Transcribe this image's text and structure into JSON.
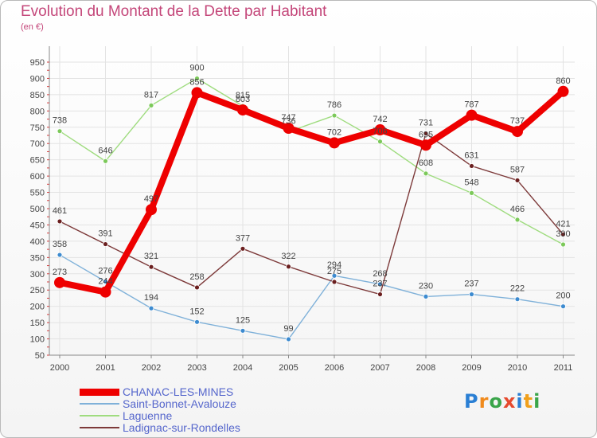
{
  "title": "Evolution du Montant de la Dette par Habitant",
  "subtitle": "(en €)",
  "logo": {
    "text": "Proxiti",
    "letter_colors": [
      "#2a7fd4",
      "#f08a1c",
      "#3aa54a",
      "#e64a2e",
      "#2a7fd4",
      "#f0a01c",
      "#3aa54a"
    ]
  },
  "chart_data": {
    "type": "line",
    "x": [
      "2000",
      "2001",
      "2002",
      "2003",
      "2004",
      "2005",
      "2006",
      "2007",
      "2008",
      "2009",
      "2010",
      "2011"
    ],
    "ylim": [
      50,
      950
    ],
    "yticks": [
      50,
      100,
      150,
      200,
      250,
      300,
      350,
      400,
      450,
      500,
      550,
      600,
      650,
      700,
      750,
      800,
      850,
      900,
      950
    ],
    "grid": true,
    "legend_position": "bottom-left",
    "series": [
      {
        "name": "CHANAC-LES-MINES",
        "color": "#ee0000",
        "marker_color": "#ee0000",
        "emphasized": true,
        "values": [
          273,
          244,
          497,
          856,
          803,
          747,
          702,
          742,
          695,
          787,
          737,
          860
        ],
        "labels": [
          "273",
          "244",
          "497",
          "856",
          "803",
          "747",
          "702",
          "742",
          "695",
          "787",
          "737",
          "860"
        ]
      },
      {
        "name": "Saint-Bonnet-Avalouze",
        "color": "#7fb1d9",
        "marker_color": "#3d8bd0",
        "emphasized": false,
        "values": [
          358,
          276,
          194,
          152,
          125,
          99,
          294,
          268,
          230,
          237,
          222,
          200
        ],
        "labels": [
          "358",
          "276",
          "194",
          "152",
          "125",
          "99",
          "294",
          "268",
          "230",
          "237",
          "222",
          "200"
        ]
      },
      {
        "name": "Laguenne",
        "color": "#9fdc7f",
        "marker_color": "#7cc95a",
        "emphasized": false,
        "values": [
          738,
          646,
          817,
          900,
          815,
          736,
          786,
          706,
          608,
          548,
          466,
          390
        ],
        "labels": [
          "738",
          "646",
          "817",
          "900",
          "815",
          "736",
          "786",
          "706",
          "608",
          "548",
          "466",
          "390"
        ]
      },
      {
        "name": "Ladignac-sur-Rondelles",
        "color": "#7d3a3a",
        "marker_color": "#6b1f1f",
        "emphasized": false,
        "values": [
          461,
          391,
          321,
          258,
          377,
          322,
          275,
          237,
          731,
          631,
          587,
          421
        ],
        "labels": [
          "461",
          "391",
          "321",
          "258",
          "377",
          "322",
          "275",
          "237",
          "731",
          "631",
          "587",
          "421"
        ]
      }
    ]
  }
}
